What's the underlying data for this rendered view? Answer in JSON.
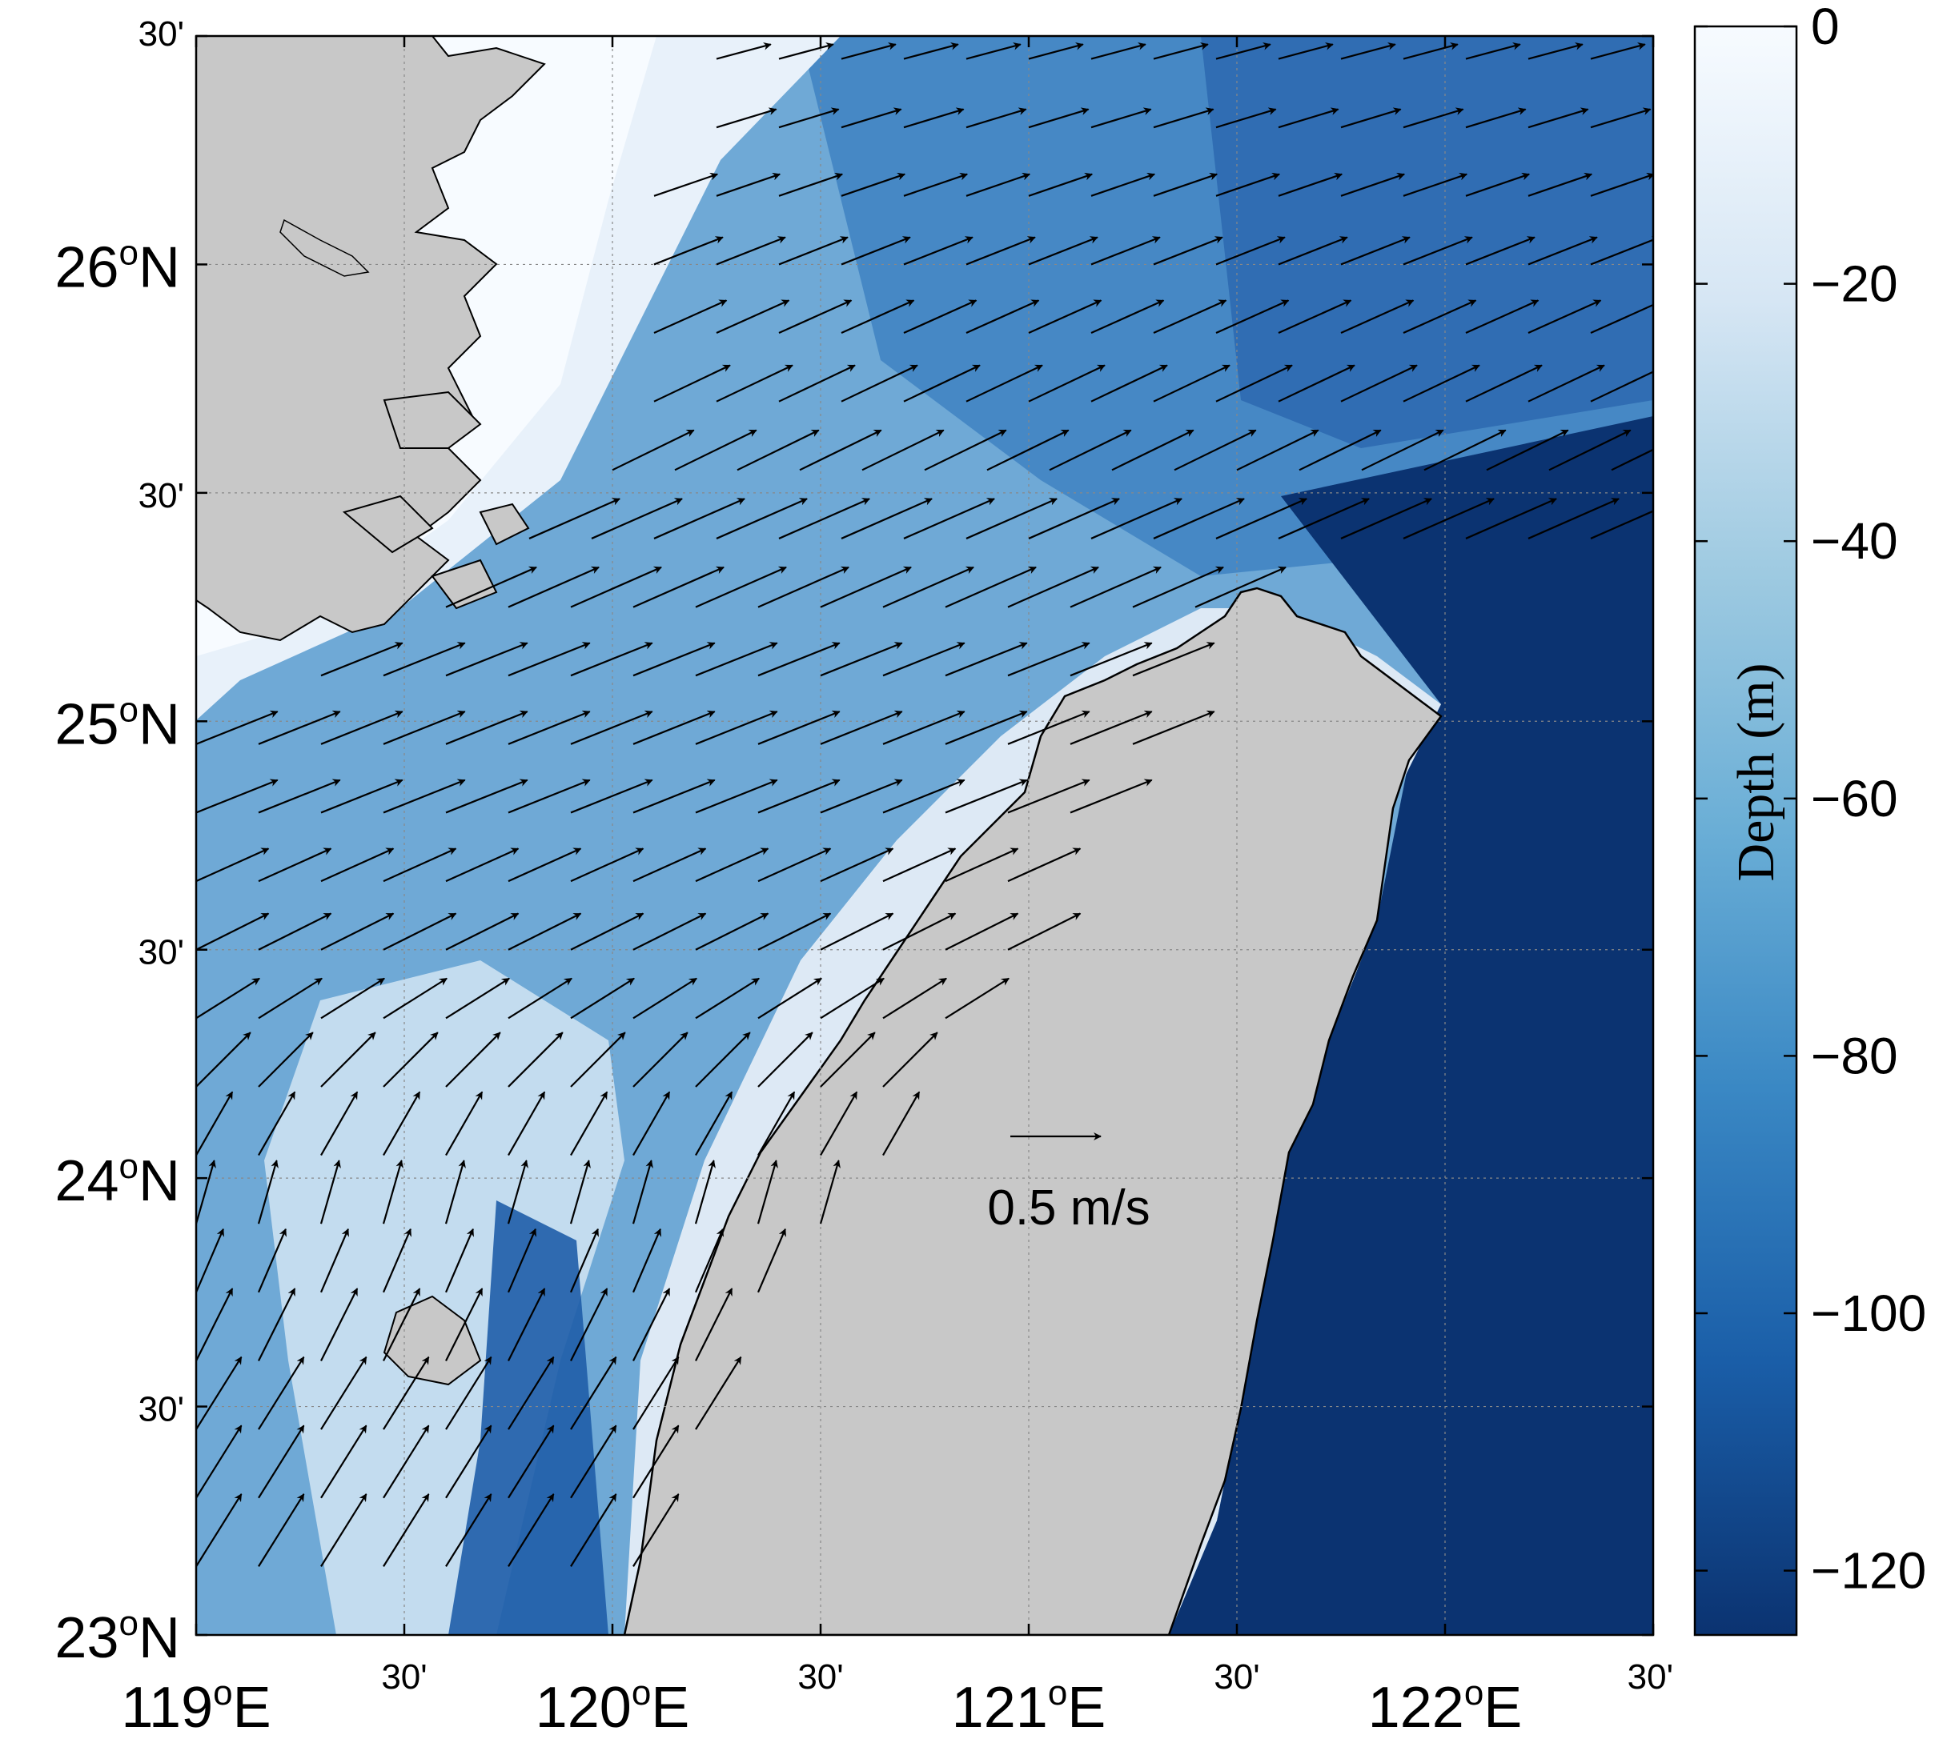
{
  "figure": {
    "lat_labels": [
      {
        "deg": "23",
        "suffix": "N",
        "major": true
      },
      {
        "text": "30'",
        "major": false
      },
      {
        "deg": "24",
        "suffix": "N",
        "major": true
      },
      {
        "text": "30'",
        "major": false
      },
      {
        "deg": "25",
        "suffix": "N",
        "major": true
      },
      {
        "text": "30'",
        "major": false
      },
      {
        "deg": "26",
        "suffix": "N",
        "major": true
      },
      {
        "text": "30'",
        "major": false
      }
    ],
    "lon_labels": [
      {
        "deg": "119",
        "suffix": "E",
        "major": true
      },
      {
        "text": "30'",
        "major": false
      },
      {
        "deg": "120",
        "suffix": "E",
        "major": true
      },
      {
        "text": "30'",
        "major": false
      },
      {
        "deg": "121",
        "suffix": "E",
        "major": true
      },
      {
        "text": "30'",
        "major": false
      },
      {
        "deg": "122",
        "suffix": "E",
        "major": true
      },
      {
        "text": "30'",
        "major": false
      }
    ],
    "degree_symbol": "o",
    "scale_arrow_label": "0.5 m/s",
    "scale_arrow_speed_ms": 0.5
  },
  "colorbar": {
    "title": "Depth (m)",
    "ticks": [
      "0",
      "−20",
      "−40",
      "−60",
      "−80",
      "−100",
      "−120"
    ],
    "range": [
      0,
      -125
    ],
    "color_shallow": "#f7fbff",
    "color_deep": "#0b3371"
  },
  "map_colors": {
    "land": "#c8c8c8",
    "coastline": "#000000"
  },
  "chart_data": {
    "type": "quiver",
    "xlim": [
      119,
      122.5
    ],
    "ylim": [
      23,
      26.5
    ],
    "xlabel": "",
    "ylabel": "",
    "grid": true,
    "legend": "none",
    "regions": [
      {
        "depth": "shallow",
        "lon": [
          119.0,
          120.2
        ],
        "lat": [
          25.2,
          26.5
        ]
      },
      {
        "depth": "deep",
        "lon": [
          121.5,
          122.5
        ],
        "lat": [
          23.0,
          25.3
        ]
      }
    ],
    "vector_rows": [
      {
        "lat": 26.45,
        "lon_start": 120.25,
        "u": 0.3,
        "v": 0.08
      },
      {
        "lat": 26.3,
        "lon_start": 120.25,
        "u": 0.33,
        "v": 0.1
      },
      {
        "lat": 26.15,
        "lon_start": 120.1,
        "u": 0.35,
        "v": 0.12
      },
      {
        "lat": 26.0,
        "lon_start": 120.1,
        "u": 0.38,
        "v": 0.15
      },
      {
        "lat": 25.85,
        "lon_start": 120.1,
        "u": 0.4,
        "v": 0.18
      },
      {
        "lat": 25.7,
        "lon_start": 120.1,
        "u": 0.42,
        "v": 0.2
      },
      {
        "lat": 25.55,
        "lon_start": 120.0,
        "u": 0.45,
        "v": 0.22
      },
      {
        "lat": 25.4,
        "lon_start": 119.8,
        "u": 0.5,
        "v": 0.22
      },
      {
        "lat": 25.25,
        "lon_start": 119.6,
        "u": 0.5,
        "v": 0.22
      },
      {
        "lat": 25.1,
        "lon_start": 119.3,
        "u": 0.45,
        "v": 0.18
      },
      {
        "lat": 24.95,
        "lon_start": 119.0,
        "u": 0.45,
        "v": 0.18
      },
      {
        "lat": 24.8,
        "lon_start": 119.0,
        "u": 0.45,
        "v": 0.18
      },
      {
        "lat": 24.65,
        "lon_start": 119.0,
        "u": 0.4,
        "v": 0.18
      },
      {
        "lat": 24.5,
        "lon_start": 119.0,
        "u": 0.4,
        "v": 0.2
      },
      {
        "lat": 24.35,
        "lon_start": 119.0,
        "u": 0.35,
        "v": 0.22
      },
      {
        "lat": 24.2,
        "lon_start": 119.0,
        "u": 0.3,
        "v": 0.3
      },
      {
        "lat": 24.05,
        "lon_start": 119.0,
        "u": 0.2,
        "v": 0.35
      },
      {
        "lat": 23.9,
        "lon_start": 119.0,
        "u": 0.1,
        "v": 0.35
      },
      {
        "lat": 23.75,
        "lon_start": 119.0,
        "u": 0.15,
        "v": 0.35
      },
      {
        "lat": 23.6,
        "lon_start": 119.0,
        "u": 0.2,
        "v": 0.4
      },
      {
        "lat": 23.45,
        "lon_start": 119.0,
        "u": 0.25,
        "v": 0.4
      },
      {
        "lat": 23.3,
        "lon_start": 119.0,
        "u": 0.25,
        "v": 0.4
      },
      {
        "lat": 23.15,
        "lon_start": 119.0,
        "u": 0.25,
        "v": 0.4
      }
    ]
  }
}
